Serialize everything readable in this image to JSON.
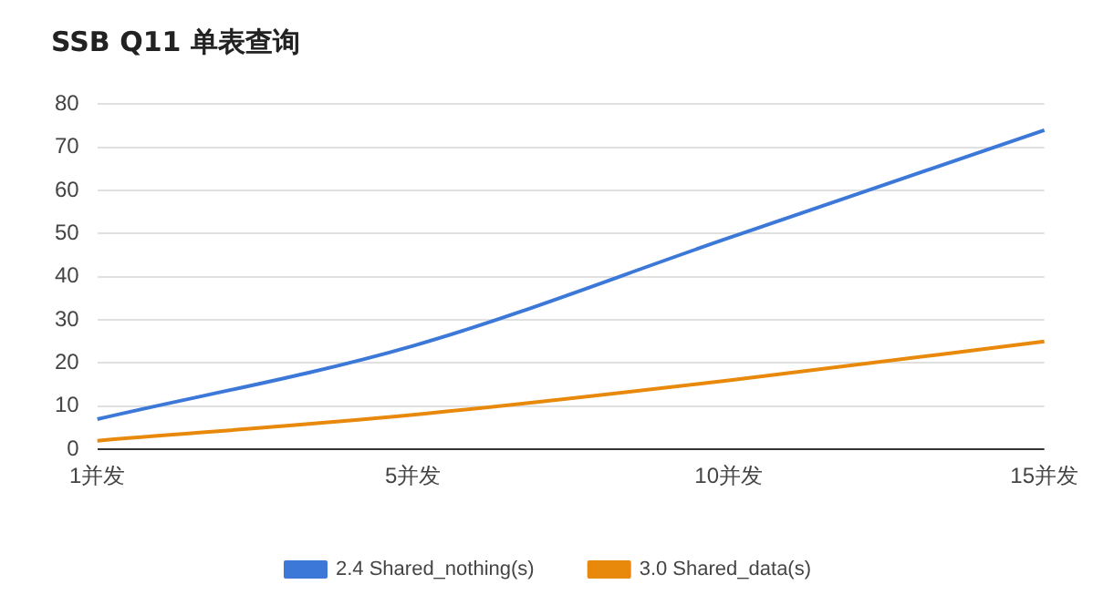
{
  "chart_data": {
    "type": "line",
    "title": "SSB Q11 单表查询",
    "categories": [
      "1并发",
      "5并发",
      "10并发",
      "15并发"
    ],
    "series": [
      {
        "name": "2.4 Shared_nothing(s)",
        "color": "#3c78d8",
        "values": [
          7,
          24,
          49,
          74
        ]
      },
      {
        "name": "3.0 Shared_data(s)",
        "color": "#e8890c",
        "values": [
          2,
          8,
          16,
          25
        ]
      }
    ],
    "ylim": [
      0,
      80
    ],
    "yticks": [
      0,
      10,
      20,
      30,
      40,
      50,
      60,
      70,
      80
    ],
    "grid": "y",
    "legend": "bottom",
    "marker": "none"
  }
}
